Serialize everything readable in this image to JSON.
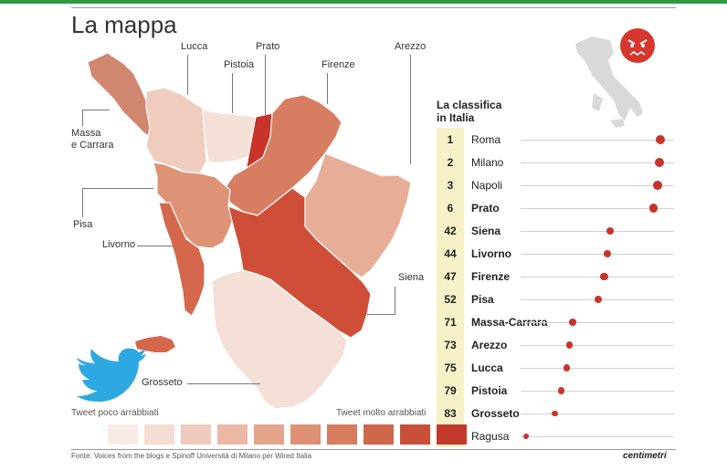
{
  "title": "La mappa",
  "map_labels": {
    "lucca": "Lucca",
    "prato": "Prato",
    "pistoia": "Pistoia",
    "firenze": "Firenze",
    "arezzo": "Arezzo",
    "massa": "Massa\ne Carrara",
    "pisa": "Pisa",
    "livorno": "Livorno",
    "siena": "Siena",
    "grosseto": "Grosseto"
  },
  "provinces": [
    {
      "name": "Massa-Carrara",
      "color": "#d18670"
    },
    {
      "name": "Lucca",
      "color": "#efccbe"
    },
    {
      "name": "Pistoia",
      "color": "#f4e0d7"
    },
    {
      "name": "Prato",
      "color": "#c8342a"
    },
    {
      "name": "Firenze",
      "color": "#d77e62"
    },
    {
      "name": "Arezzo",
      "color": "#e7ad96"
    },
    {
      "name": "Pisa",
      "color": "#de9376"
    },
    {
      "name": "Livorno",
      "color": "#d5674c"
    },
    {
      "name": "Siena",
      "color": "#cf4e38"
    },
    {
      "name": "Grosseto",
      "color": "#f4e0d7"
    }
  ],
  "ranking": {
    "title_line1": "La classifica",
    "title_line2": "in Italia",
    "rows": [
      {
        "rank": "1",
        "city": "Roma",
        "bold": false,
        "pos": 0.97
      },
      {
        "rank": "2",
        "city": "Milano",
        "bold": false,
        "pos": 0.96
      },
      {
        "rank": "3",
        "city": "Napoli",
        "bold": false,
        "pos": 0.95
      },
      {
        "rank": "6",
        "city": "Prato",
        "bold": true,
        "pos": 0.92
      },
      {
        "rank": "42",
        "city": "Siena",
        "bold": true,
        "pos": 0.62
      },
      {
        "rank": "44",
        "city": "Livorno",
        "bold": true,
        "pos": 0.6
      },
      {
        "rank": "47",
        "city": "Firenze",
        "bold": true,
        "pos": 0.58
      },
      {
        "rank": "52",
        "city": "Pisa",
        "bold": true,
        "pos": 0.54
      },
      {
        "rank": "71",
        "city": "Massa-Carrara",
        "bold": true,
        "pos": 0.36
      },
      {
        "rank": "73",
        "city": "Arezzo",
        "bold": true,
        "pos": 0.34
      },
      {
        "rank": "75",
        "city": "Lucca",
        "bold": true,
        "pos": 0.32
      },
      {
        "rank": "79",
        "city": "Pistoia",
        "bold": true,
        "pos": 0.28
      },
      {
        "rank": "83",
        "city": "Grosseto",
        "bold": true,
        "pos": 0.24
      },
      {
        "rank": "110",
        "city": "Ragusa",
        "bold": false,
        "pos": 0.04
      }
    ]
  },
  "legend": {
    "low_label": "Tweet poco arrabbiati",
    "high_label": "Tweet molto arrabbiati",
    "colors": [
      "#f8ebe5",
      "#f4ddd2",
      "#efcbbd",
      "#eab8a5",
      "#e4a48c",
      "#de9075",
      "#d77c5f",
      "#d0664a",
      "#c94f38",
      "#c23a2c"
    ]
  },
  "icons": {
    "bird": "twitter-bird-icon",
    "face": "angry-face-icon",
    "italy": "italy-map-icon"
  },
  "source": "Fonte: Voices from the blogs e Spinoff Università di Milano per Wired Italia",
  "brand": "centimetri"
}
